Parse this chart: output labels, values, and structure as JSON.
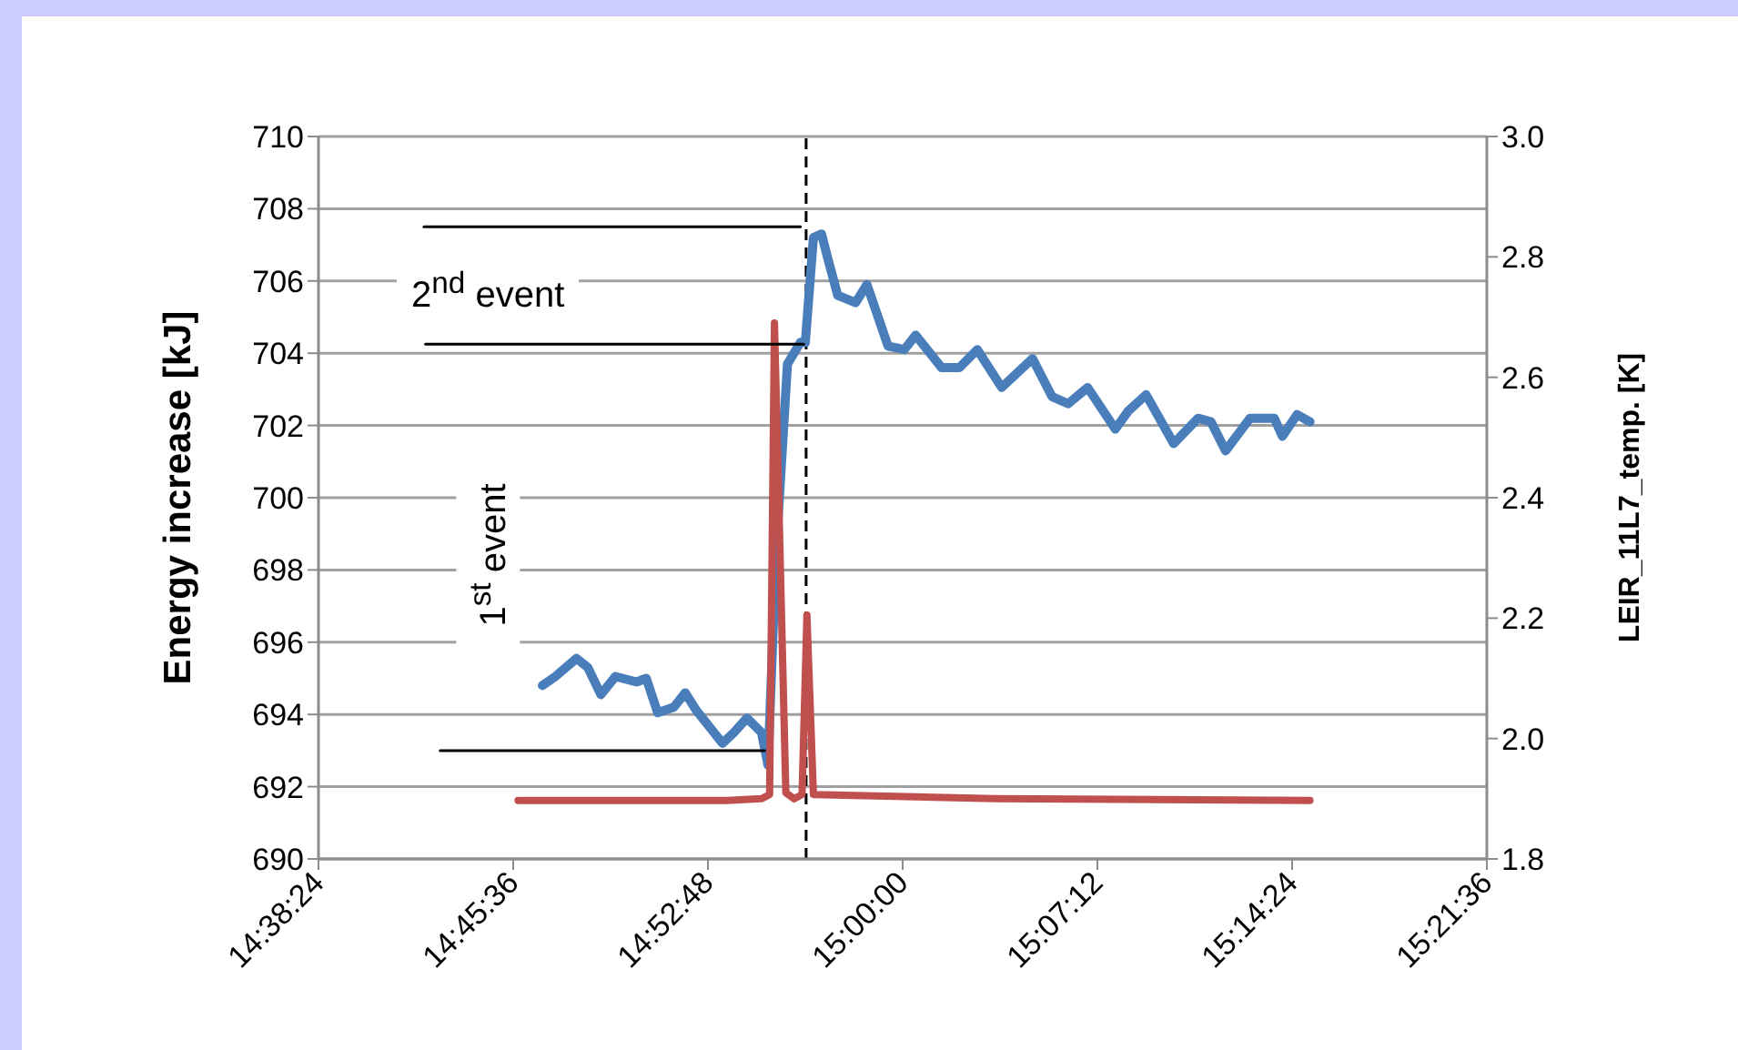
{
  "chart_data": {
    "type": "line",
    "ylabel": "Energy increase [kJ]",
    "y2label": "LEIR_11L7_temp. [K]",
    "annotations": [
      "2$^{nd}$ event",
      "1$^{st}$ event"
    ],
    "xlim": [
      14.64,
      15.36
    ],
    "xticks": [
      {
        "value": 14.64,
        "label": "14:38:24"
      },
      {
        "value": 14.76,
        "label": "14:45:36"
      },
      {
        "value": 14.88,
        "label": "14:52:48"
      },
      {
        "value": 15.0,
        "label": "15:00:00"
      },
      {
        "value": 15.12,
        "label": "15:07:12"
      },
      {
        "value": 15.24,
        "label": "15:14:24"
      },
      {
        "value": 15.36,
        "label": "15:21:36"
      }
    ],
    "ylim": [
      690,
      710
    ],
    "yticks": [
      690,
      692,
      694,
      696,
      698,
      700,
      702,
      704,
      706,
      708,
      710
    ],
    "y2lim": [
      1.8,
      3.0
    ],
    "y2ticks": [
      {
        "value": 1.8,
        "label": "1.8"
      },
      {
        "value": 2.0,
        "label": "2.0"
      },
      {
        "value": 2.2,
        "label": "2.2"
      },
      {
        "value": 2.4,
        "label": "2.4"
      },
      {
        "value": 2.6,
        "label": "2.6"
      },
      {
        "value": 2.8,
        "label": "2.8"
      },
      {
        "value": 3.0,
        "label": "3.0"
      }
    ],
    "grid": "y",
    "series": [
      {
        "color": "#4a7ebb",
        "x": [
          14.778,
          14.786,
          14.799,
          14.806,
          14.814,
          14.823,
          14.836,
          14.842,
          14.849,
          14.859,
          14.866,
          14.873,
          14.889,
          14.896,
          14.904,
          14.913,
          14.917,
          14.922,
          14.929,
          14.937,
          14.94,
          14.945,
          14.95,
          14.954,
          14.96,
          14.971,
          14.978,
          14.991,
          15.001,
          15.008,
          15.024,
          15.035,
          15.046,
          15.061,
          15.08,
          15.092,
          15.102,
          15.114,
          15.131,
          15.139,
          15.15,
          15.167,
          15.182,
          15.19,
          15.199,
          15.214,
          15.229,
          15.234,
          15.243,
          15.251
        ],
        "values": [
          694.8,
          695.05,
          695.55,
          695.3,
          694.55,
          695.05,
          694.9,
          695.0,
          694.05,
          694.2,
          694.6,
          694.1,
          693.2,
          693.5,
          693.9,
          693.5,
          692.6,
          698.5,
          703.7,
          704.3,
          704.3,
          707.2,
          707.3,
          706.6,
          705.6,
          705.4,
          705.9,
          704.2,
          704.1,
          704.5,
          703.6,
          703.6,
          704.1,
          703.05,
          703.85,
          702.8,
          702.6,
          703.05,
          701.9,
          702.4,
          702.85,
          701.5,
          702.2,
          702.1,
          701.3,
          702.2,
          702.2,
          701.7,
          702.3,
          702.1
        ]
      },
      {
        "color": "#c0504d",
        "axis": "y2",
        "x": [
          14.763,
          14.892,
          14.913,
          14.918,
          14.921,
          14.928,
          14.933,
          14.938,
          14.941,
          14.945,
          15.057,
          15.251
        ],
        "values": [
          1.897,
          1.897,
          1.9,
          1.907,
          2.69,
          1.91,
          1.9,
          1.907,
          2.205,
          1.907,
          1.9,
          1.897
        ]
      },
      {
        "color": "#000000",
        "x": [
          14.705,
          14.937
        ],
        "values": [
          707.5,
          707.5
        ]
      },
      {
        "color": "#000000",
        "x": [
          14.706,
          14.939
        ],
        "values": [
          704.25,
          704.25
        ]
      },
      {
        "color": "#000000",
        "x": [
          14.715,
          14.915
        ],
        "values": [
          693.0,
          693.0
        ]
      }
    ],
    "ref_lines": [
      {
        "axis": "x",
        "value": 14.9405,
        "color": "#000000",
        "line_style": "dashed"
      }
    ]
  }
}
